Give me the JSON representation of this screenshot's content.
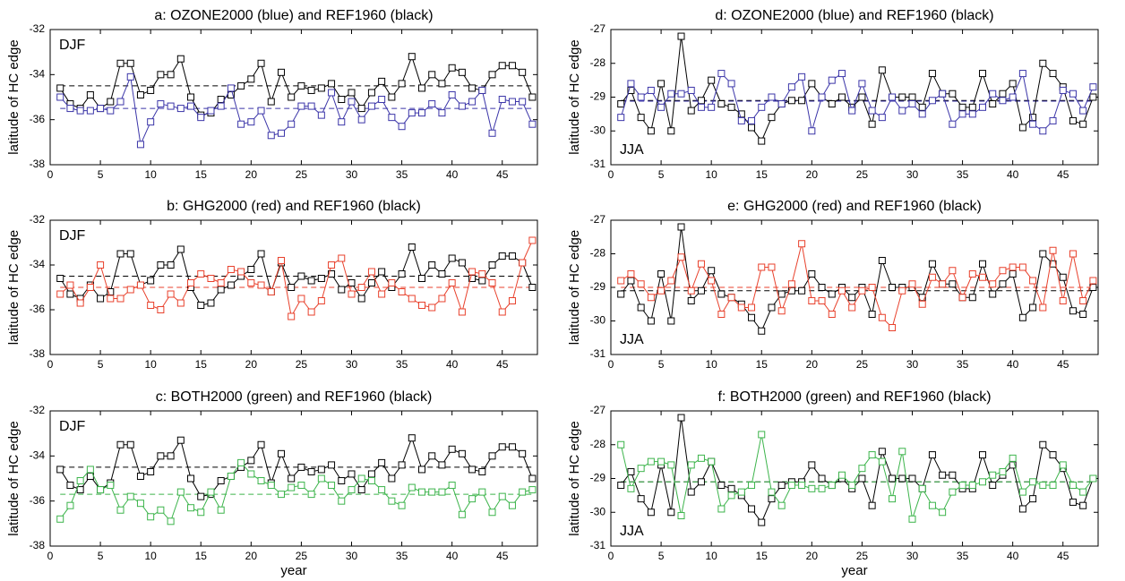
{
  "chart_data": [
    {
      "type": "line",
      "title": "a: OZONE2000 (blue) and REF1960 (black)",
      "annotation": "DJF",
      "annotation_position": "upper left",
      "ylabel": "latitude of HC edge",
      "x": [
        1,
        2,
        3,
        4,
        5,
        6,
        7,
        8,
        9,
        10,
        11,
        12,
        13,
        14,
        15,
        16,
        17,
        18,
        19,
        20,
        21,
        22,
        23,
        24,
        25,
        26,
        27,
        28,
        29,
        30,
        31,
        32,
        33,
        34,
        35,
        36,
        37,
        38,
        39,
        40,
        41,
        42,
        43,
        44,
        45,
        46,
        47,
        48
      ],
      "series": [
        {
          "color": "#000000",
          "values": [
            -34.6,
            -35.3,
            -35.5,
            -34.9,
            -35.5,
            -35.2,
            -33.5,
            -33.5,
            -34.9,
            -34.7,
            -34.0,
            -34.0,
            -33.3,
            -35.0,
            -35.8,
            -35.7,
            -35.1,
            -34.9,
            -34.5,
            -34.2,
            -33.5,
            -35.2,
            -33.9,
            -35.0,
            -34.5,
            -34.7,
            -34.6,
            -34.4,
            -35.1,
            -34.8,
            -35.5,
            -34.8,
            -34.3,
            -35.0,
            -34.4,
            -33.2,
            -34.6,
            -34.0,
            -34.4,
            -33.7,
            -33.9,
            -34.6,
            -34.7,
            -34.0,
            -33.6,
            -33.6,
            -33.9,
            -35.0
          ]
        },
        {
          "color": "#3b35a8",
          "values": [
            -35.0,
            -35.5,
            -35.6,
            -35.6,
            -35.5,
            -35.6,
            -35.2,
            -34.1,
            -37.1,
            -36.1,
            -35.3,
            -35.4,
            -35.5,
            -35.4,
            -35.9,
            -35.6,
            -35.4,
            -34.6,
            -36.2,
            -36.1,
            -35.6,
            -36.7,
            -36.6,
            -36.2,
            -35.4,
            -35.4,
            -35.8,
            -34.8,
            -36.1,
            -35.2,
            -36.0,
            -35.4,
            -35.1,
            -35.9,
            -36.3,
            -35.7,
            -35.7,
            -35.3,
            -35.7,
            -34.9,
            -35.4,
            -35.2,
            -34.7,
            -36.6,
            -35.1,
            -35.2,
            -35.2,
            -36.2
          ]
        }
      ],
      "mean_lines": [
        {
          "color": "#000000",
          "value": -34.5
        },
        {
          "color": "#3b35a8",
          "value": -35.5
        }
      ],
      "xlim": [
        0,
        48.5
      ],
      "xticks": [
        0,
        5,
        10,
        15,
        20,
        25,
        30,
        35,
        40,
        45
      ],
      "ylim": [
        -38,
        -32
      ],
      "yticks": [
        -38,
        -36,
        -34,
        -32
      ]
    },
    {
      "type": "line",
      "title": "b: GHG2000 (red) and REF1960 (black)",
      "annotation": "DJF",
      "annotation_position": "upper left",
      "ylabel": "latitude of HC edge",
      "x": [
        1,
        2,
        3,
        4,
        5,
        6,
        7,
        8,
        9,
        10,
        11,
        12,
        13,
        14,
        15,
        16,
        17,
        18,
        19,
        20,
        21,
        22,
        23,
        24,
        25,
        26,
        27,
        28,
        29,
        30,
        31,
        32,
        33,
        34,
        35,
        36,
        37,
        38,
        39,
        40,
        41,
        42,
        43,
        44,
        45,
        46,
        47,
        48
      ],
      "series": [
        {
          "color": "#000000",
          "values": [
            -34.6,
            -35.3,
            -35.5,
            -34.9,
            -35.5,
            -35.2,
            -33.5,
            -33.5,
            -34.9,
            -34.7,
            -34.0,
            -34.0,
            -33.3,
            -35.0,
            -35.8,
            -35.7,
            -35.1,
            -34.9,
            -34.5,
            -34.2,
            -33.5,
            -35.2,
            -33.9,
            -35.0,
            -34.5,
            -34.7,
            -34.6,
            -34.4,
            -35.1,
            -34.8,
            -35.5,
            -34.8,
            -34.3,
            -35.0,
            -34.4,
            -33.2,
            -34.6,
            -34.0,
            -34.4,
            -33.7,
            -33.9,
            -34.6,
            -34.7,
            -34.0,
            -33.6,
            -33.6,
            -33.9,
            -35.0
          ]
        },
        {
          "color": "#e8412c",
          "values": [
            -35.3,
            -34.9,
            -35.7,
            -35.0,
            -34.0,
            -35.5,
            -35.5,
            -35.1,
            -34.9,
            -35.8,
            -36.0,
            -35.3,
            -35.7,
            -34.8,
            -34.4,
            -34.6,
            -34.8,
            -34.2,
            -34.3,
            -34.8,
            -34.9,
            -35.2,
            -33.8,
            -36.3,
            -35.5,
            -36.1,
            -35.6,
            -34.0,
            -33.7,
            -35.3,
            -35.0,
            -34.3,
            -35.3,
            -34.8,
            -35.2,
            -35.5,
            -35.8,
            -35.9,
            -35.5,
            -34.8,
            -36.1,
            -34.3,
            -34.4,
            -34.8,
            -36.1,
            -35.6,
            -33.9,
            -32.9
          ]
        }
      ],
      "mean_lines": [
        {
          "color": "#000000",
          "value": -34.5
        },
        {
          "color": "#e8412c",
          "value": -35.0
        }
      ],
      "xlim": [
        0,
        48.5
      ],
      "xticks": [
        0,
        5,
        10,
        15,
        20,
        25,
        30,
        35,
        40,
        45
      ],
      "ylim": [
        -38,
        -32
      ],
      "yticks": [
        -38,
        -36,
        -34,
        -32
      ]
    },
    {
      "type": "line",
      "title": "c: BOTH2000 (green) and REF1960 (black)",
      "annotation": "DJF",
      "annotation_position": "upper left",
      "ylabel": "latitude of HC edge",
      "xlabel": "year",
      "x": [
        1,
        2,
        3,
        4,
        5,
        6,
        7,
        8,
        9,
        10,
        11,
        12,
        13,
        14,
        15,
        16,
        17,
        18,
        19,
        20,
        21,
        22,
        23,
        24,
        25,
        26,
        27,
        28,
        29,
        30,
        31,
        32,
        33,
        34,
        35,
        36,
        37,
        38,
        39,
        40,
        41,
        42,
        43,
        44,
        45,
        46,
        47,
        48
      ],
      "series": [
        {
          "color": "#000000",
          "values": [
            -34.6,
            -35.3,
            -35.5,
            -34.9,
            -35.5,
            -35.2,
            -33.5,
            -33.5,
            -34.9,
            -34.7,
            -34.0,
            -34.0,
            -33.3,
            -35.0,
            -35.8,
            -35.7,
            -35.1,
            -34.9,
            -34.5,
            -34.2,
            -33.5,
            -35.2,
            -33.9,
            -35.0,
            -34.5,
            -34.7,
            -34.6,
            -34.4,
            -35.1,
            -34.8,
            -35.5,
            -34.8,
            -34.3,
            -35.0,
            -34.4,
            -33.2,
            -34.6,
            -34.0,
            -34.4,
            -33.7,
            -33.9,
            -34.6,
            -34.7,
            -34.0,
            -33.6,
            -33.6,
            -33.9,
            -35.0
          ]
        },
        {
          "color": "#3cb44b",
          "values": [
            -36.8,
            -36.2,
            -35.1,
            -34.6,
            -35.5,
            -35.3,
            -36.4,
            -35.8,
            -36.1,
            -36.7,
            -36.4,
            -36.9,
            -35.6,
            -36.3,
            -36.5,
            -35.6,
            -36.4,
            -34.9,
            -34.3,
            -34.8,
            -35.1,
            -35.3,
            -35.7,
            -35.4,
            -35.3,
            -35.7,
            -35.0,
            -35.3,
            -36.0,
            -35.5,
            -35.0,
            -35.1,
            -35.5,
            -36.0,
            -36.2,
            -35.4,
            -35.6,
            -35.6,
            -35.6,
            -35.3,
            -36.6,
            -35.9,
            -35.6,
            -36.5,
            -35.8,
            -36.2,
            -35.6,
            -35.5
          ]
        }
      ],
      "mean_lines": [
        {
          "color": "#000000",
          "value": -34.5
        },
        {
          "color": "#3cb44b",
          "value": -35.7
        }
      ],
      "xlim": [
        0,
        48.5
      ],
      "xticks": [
        0,
        5,
        10,
        15,
        20,
        25,
        30,
        35,
        40,
        45
      ],
      "ylim": [
        -38,
        -32
      ],
      "yticks": [
        -38,
        -36,
        -34,
        -32
      ]
    },
    {
      "type": "line",
      "title": "d: OZONE2000 (blue) and REF1960 (black)",
      "annotation": "JJA",
      "annotation_position": "lower left",
      "ylabel": "latitude of HC edge",
      "x": [
        1,
        2,
        3,
        4,
        5,
        6,
        7,
        8,
        9,
        10,
        11,
        12,
        13,
        14,
        15,
        16,
        17,
        18,
        19,
        20,
        21,
        22,
        23,
        24,
        25,
        26,
        27,
        28,
        29,
        30,
        31,
        32,
        33,
        34,
        35,
        36,
        37,
        38,
        39,
        40,
        41,
        42,
        43,
        44,
        45,
        46,
        47,
        48
      ],
      "series": [
        {
          "color": "#000000",
          "values": [
            -29.2,
            -28.8,
            -29.6,
            -30.0,
            -28.6,
            -30.0,
            -27.2,
            -29.4,
            -29.1,
            -28.5,
            -29.2,
            -29.3,
            -29.5,
            -29.9,
            -30.3,
            -29.6,
            -29.2,
            -29.1,
            -29.1,
            -28.6,
            -29.0,
            -29.2,
            -29.0,
            -29.3,
            -29.0,
            -29.8,
            -28.2,
            -29.0,
            -29.0,
            -29.0,
            -29.3,
            -28.3,
            -28.9,
            -28.9,
            -29.3,
            -29.3,
            -28.3,
            -29.2,
            -28.9,
            -28.6,
            -29.9,
            -29.6,
            -28.0,
            -28.3,
            -28.7,
            -29.7,
            -29.8,
            -29.0
          ]
        },
        {
          "color": "#3b35a8",
          "values": [
            -29.6,
            -28.6,
            -29.0,
            -28.8,
            -29.3,
            -28.9,
            -28.9,
            -28.8,
            -29.3,
            -29.3,
            -28.3,
            -28.6,
            -29.7,
            -29.7,
            -29.3,
            -29.0,
            -29.2,
            -28.7,
            -28.4,
            -30.0,
            -29.0,
            -28.5,
            -28.3,
            -29.4,
            -28.6,
            -29.4,
            -29.6,
            -29.0,
            -29.4,
            -29.2,
            -29.5,
            -29.1,
            -28.9,
            -29.8,
            -29.5,
            -29.5,
            -29.3,
            -28.9,
            -29.1,
            -29.0,
            -28.3,
            -29.8,
            -30.0,
            -29.7,
            -28.8,
            -28.9,
            -29.4,
            -28.7
          ]
        }
      ],
      "mean_lines": [
        {
          "color": "#000000",
          "value": -29.1
        },
        {
          "color": "#3b35a8",
          "value": -29.12
        }
      ],
      "xlim": [
        0,
        48.5
      ],
      "xticks": [
        0,
        5,
        10,
        15,
        20,
        25,
        30,
        35,
        40,
        45
      ],
      "ylim": [
        -31,
        -27
      ],
      "yticks": [
        -31,
        -30,
        -29,
        -28,
        -27
      ]
    },
    {
      "type": "line",
      "title": "e: GHG2000 (red) and REF1960 (black)",
      "annotation": "JJA",
      "annotation_position": "lower left",
      "ylabel": "latitude of HC edge",
      "x": [
        1,
        2,
        3,
        4,
        5,
        6,
        7,
        8,
        9,
        10,
        11,
        12,
        13,
        14,
        15,
        16,
        17,
        18,
        19,
        20,
        21,
        22,
        23,
        24,
        25,
        26,
        27,
        28,
        29,
        30,
        31,
        32,
        33,
        34,
        35,
        36,
        37,
        38,
        39,
        40,
        41,
        42,
        43,
        44,
        45,
        46,
        47,
        48
      ],
      "series": [
        {
          "color": "#000000",
          "values": [
            -29.2,
            -28.8,
            -29.6,
            -30.0,
            -28.6,
            -30.0,
            -27.2,
            -29.4,
            -29.1,
            -28.5,
            -29.2,
            -29.3,
            -29.5,
            -29.9,
            -30.3,
            -29.6,
            -29.2,
            -29.1,
            -29.1,
            -28.6,
            -29.0,
            -29.2,
            -29.0,
            -29.3,
            -29.0,
            -29.8,
            -28.2,
            -29.0,
            -29.0,
            -29.0,
            -29.3,
            -28.3,
            -28.9,
            -28.9,
            -29.3,
            -29.3,
            -28.3,
            -29.2,
            -28.9,
            -28.6,
            -29.9,
            -29.6,
            -28.0,
            -28.3,
            -28.7,
            -29.7,
            -29.8,
            -29.0
          ]
        },
        {
          "color": "#e8412c",
          "values": [
            -28.8,
            -28.6,
            -28.9,
            -29.3,
            -29.1,
            -28.8,
            -28.1,
            -29.1,
            -28.3,
            -28.8,
            -29.8,
            -29.3,
            -29.6,
            -29.6,
            -28.4,
            -28.4,
            -29.7,
            -28.9,
            -27.7,
            -29.4,
            -29.4,
            -29.8,
            -29.1,
            -29.6,
            -29.1,
            -29.0,
            -29.9,
            -30.2,
            -29.1,
            -28.9,
            -29.5,
            -28.7,
            -28.9,
            -28.5,
            -29.3,
            -28.6,
            -28.7,
            -28.9,
            -28.5,
            -28.4,
            -28.4,
            -28.8,
            -29.6,
            -27.9,
            -29.4,
            -28.0,
            -29.4,
            -28.8
          ]
        }
      ],
      "mean_lines": [
        {
          "color": "#000000",
          "value": -29.1
        },
        {
          "color": "#e8412c",
          "value": -29.0
        }
      ],
      "xlim": [
        0,
        48.5
      ],
      "xticks": [
        0,
        5,
        10,
        15,
        20,
        25,
        30,
        35,
        40,
        45
      ],
      "ylim": [
        -31,
        -27
      ],
      "yticks": [
        -31,
        -30,
        -29,
        -28,
        -27
      ]
    },
    {
      "type": "line",
      "title": "f: BOTH2000 (green) and REF1960 (black)",
      "annotation": "JJA",
      "annotation_position": "lower left",
      "ylabel": "latitude of HC edge",
      "xlabel": "year",
      "x": [
        1,
        2,
        3,
        4,
        5,
        6,
        7,
        8,
        9,
        10,
        11,
        12,
        13,
        14,
        15,
        16,
        17,
        18,
        19,
        20,
        21,
        22,
        23,
        24,
        25,
        26,
        27,
        28,
        29,
        30,
        31,
        32,
        33,
        34,
        35,
        36,
        37,
        38,
        39,
        40,
        41,
        42,
        43,
        44,
        45,
        46,
        47,
        48
      ],
      "series": [
        {
          "color": "#000000",
          "values": [
            -29.2,
            -28.8,
            -29.6,
            -30.0,
            -28.6,
            -30.0,
            -27.2,
            -29.4,
            -29.1,
            -28.5,
            -29.2,
            -29.3,
            -29.5,
            -29.9,
            -30.3,
            -29.6,
            -29.2,
            -29.1,
            -29.1,
            -28.6,
            -29.0,
            -29.2,
            -29.0,
            -29.3,
            -29.0,
            -29.8,
            -28.2,
            -29.0,
            -29.0,
            -29.0,
            -29.3,
            -28.3,
            -28.9,
            -28.9,
            -29.3,
            -29.3,
            -28.3,
            -29.2,
            -28.9,
            -28.6,
            -29.9,
            -29.6,
            -28.0,
            -28.3,
            -28.7,
            -29.7,
            -29.8,
            -29.0
          ]
        },
        {
          "color": "#3cb44b",
          "values": [
            -28.0,
            -29.3,
            -28.7,
            -28.5,
            -28.5,
            -28.6,
            -30.1,
            -28.6,
            -28.4,
            -28.5,
            -29.9,
            -29.5,
            -29.4,
            -29.2,
            -27.7,
            -29.4,
            -29.8,
            -29.2,
            -29.2,
            -29.3,
            -29.3,
            -29.2,
            -28.9,
            -29.2,
            -28.7,
            -28.3,
            -28.5,
            -29.6,
            -28.2,
            -30.2,
            -29.3,
            -29.8,
            -30.0,
            -29.4,
            -29.2,
            -29.2,
            -29.1,
            -28.9,
            -28.8,
            -28.4,
            -29.4,
            -29.1,
            -29.2,
            -29.2,
            -28.6,
            -29.2,
            -29.4,
            -29.0
          ]
        }
      ],
      "mean_lines": [
        {
          "color": "#000000",
          "value": -29.1
        },
        {
          "color": "#3cb44b",
          "value": -29.1
        }
      ],
      "xlim": [
        0,
        48.5
      ],
      "xticks": [
        0,
        5,
        10,
        15,
        20,
        25,
        30,
        35,
        40,
        45
      ],
      "ylim": [
        -31,
        -27
      ],
      "yticks": [
        -31,
        -30,
        -29,
        -28,
        -27
      ]
    }
  ]
}
